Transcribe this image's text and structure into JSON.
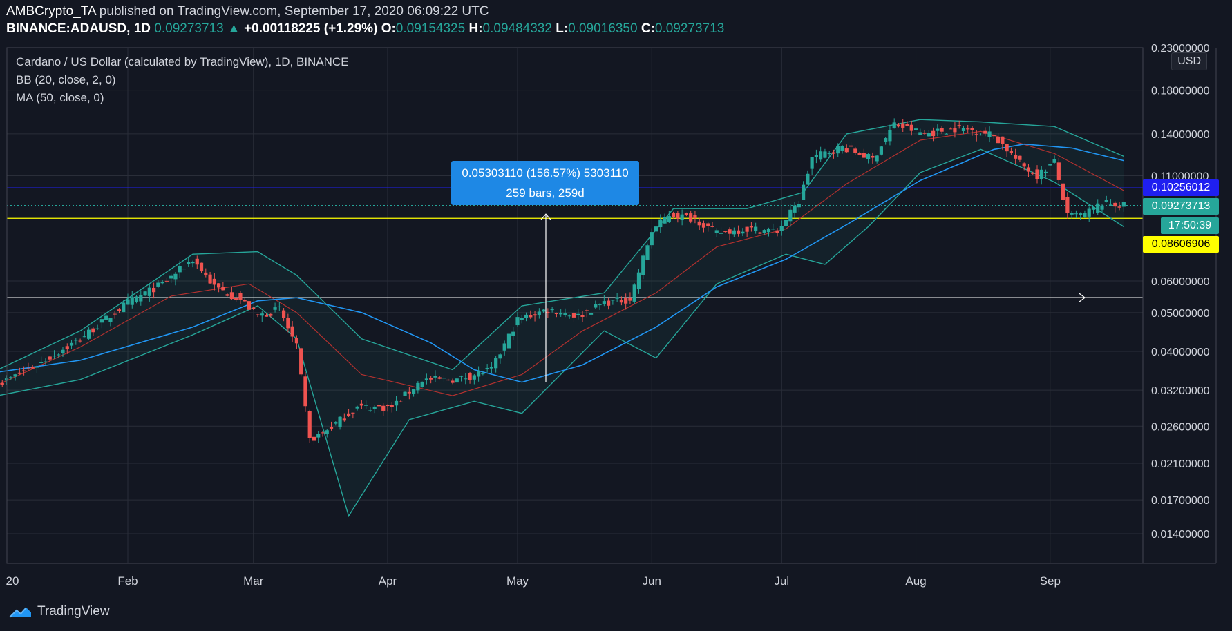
{
  "header": {
    "author": "AMBCrypto_TA",
    "published": " published on TradingView.com, September 17, 2020 06:09:22 UTC",
    "symbol": "BINANCE:ADAUSD, 1D",
    "last": "0.09273713",
    "change": "+0.00118225 (+1.29%)",
    "o_label": "O:",
    "open": "0.09154325",
    "h_label": "H:",
    "high": "0.09484332",
    "l_label": "L:",
    "low": "0.09016350",
    "c_label": "C:",
    "close": "0.09273713"
  },
  "legend": {
    "title": "Cardano / US Dollar (calculated by TradingView), 1D, BINANCE",
    "bb": "BB (20, close, 2, 0)",
    "ma": "MA (50, close, 0)"
  },
  "usd_button": "USD",
  "price_labels": {
    "blue_line": "0.10256012",
    "last_price": "0.09273713",
    "countdown": "17:50:39",
    "yellow_line": "0.08606906"
  },
  "measure": {
    "line1": "0.05303110 (156.57%) 5303110",
    "line2": "259 bars, 259d"
  },
  "footer": {
    "brand": "TradingView"
  },
  "colors": {
    "up": "#26a69a",
    "down": "#ef5350",
    "bb": "#26a69a",
    "ma": "#2196f3",
    "basis": "#b2312f",
    "background": "#131722"
  },
  "chart_data": {
    "type": "candlestick",
    "title": "Cardano / US Dollar (calculated by TradingView), 1D, BINANCE",
    "scale": "log",
    "ylim": [
      0.0118,
      0.23
    ],
    "x_ticks": [
      "20",
      "Feb",
      "Mar",
      "Apr",
      "May",
      "Jun",
      "Jul",
      "Aug",
      "Sep"
    ],
    "y_ticks": [
      "0.23000000",
      "0.18000000",
      "0.14000000",
      "0.11000000",
      "0.06000000",
      "0.05000000",
      "0.04000000",
      "0.03200000",
      "0.02600000",
      "0.02100000",
      "0.01700000",
      "0.01400000"
    ],
    "y_tick_values": [
      0.23,
      0.18,
      0.14,
      0.11,
      0.06,
      0.05,
      0.04,
      0.032,
      0.026,
      0.021,
      0.017,
      0.014
    ],
    "horizontal_lines": [
      {
        "value": 0.10256012,
        "color": "#1f1ff0"
      },
      {
        "value": 0.08606906,
        "color": "#ffff00"
      },
      {
        "value": 0.0545,
        "color": "#ffffff"
      }
    ],
    "close_anchors": [
      [
        "2020-01-01",
        0.033
      ],
      [
        "2020-01-10",
        0.037
      ],
      [
        "2020-01-20",
        0.043
      ],
      [
        "2020-01-31",
        0.053
      ],
      [
        "2020-02-08",
        0.059
      ],
      [
        "2020-02-15",
        0.068
      ],
      [
        "2020-02-20",
        0.058
      ],
      [
        "2020-02-26",
        0.054
      ],
      [
        "2020-03-01",
        0.049
      ],
      [
        "2020-03-06",
        0.051
      ],
      [
        "2020-03-10",
        0.041
      ],
      [
        "2020-03-13",
        0.024
      ],
      [
        "2020-03-16",
        0.025
      ],
      [
        "2020-03-24",
        0.029
      ],
      [
        "2020-04-01",
        0.029
      ],
      [
        "2020-04-08",
        0.034
      ],
      [
        "2020-04-16",
        0.034
      ],
      [
        "2020-04-24",
        0.036
      ],
      [
        "2020-04-30",
        0.048
      ],
      [
        "2020-05-07",
        0.051
      ],
      [
        "2020-05-14",
        0.049
      ],
      [
        "2020-05-20",
        0.053
      ],
      [
        "2020-05-26",
        0.054
      ],
      [
        "2020-05-31",
        0.08
      ],
      [
        "2020-06-04",
        0.088
      ],
      [
        "2020-06-10",
        0.086
      ],
      [
        "2020-06-15",
        0.079
      ],
      [
        "2020-06-22",
        0.081
      ],
      [
        "2020-06-29",
        0.08
      ],
      [
        "2020-07-04",
        0.095
      ],
      [
        "2020-07-07",
        0.122
      ],
      [
        "2020-07-14",
        0.13
      ],
      [
        "2020-07-21",
        0.121
      ],
      [
        "2020-07-26",
        0.148
      ],
      [
        "2020-08-02",
        0.14
      ],
      [
        "2020-08-10",
        0.145
      ],
      [
        "2020-08-18",
        0.139
      ],
      [
        "2020-08-24",
        0.118
      ],
      [
        "2020-08-28",
        0.11
      ],
      [
        "2020-09-01",
        0.119
      ],
      [
        "2020-09-04",
        0.087
      ],
      [
        "2020-09-08",
        0.088
      ],
      [
        "2020-09-12",
        0.094
      ],
      [
        "2020-09-17",
        0.0927
      ]
    ],
    "moving_average_50": [
      [
        "2020-01-01",
        0.0355
      ],
      [
        "2020-01-20",
        0.038
      ],
      [
        "2020-02-15",
        0.046
      ],
      [
        "2020-03-01",
        0.0535
      ],
      [
        "2020-03-10",
        0.0545
      ],
      [
        "2020-03-25",
        0.05
      ],
      [
        "2020-04-10",
        0.042
      ],
      [
        "2020-04-20",
        0.036
      ],
      [
        "2020-05-01",
        0.0335
      ],
      [
        "2020-05-15",
        0.037
      ],
      [
        "2020-06-01",
        0.046
      ],
      [
        "2020-06-15",
        0.058
      ],
      [
        "2020-07-01",
        0.068
      ],
      [
        "2020-07-15",
        0.083
      ],
      [
        "2020-08-01",
        0.107
      ],
      [
        "2020-08-18",
        0.128
      ],
      [
        "2020-08-25",
        0.132
      ],
      [
        "2020-09-05",
        0.129
      ],
      [
        "2020-09-17",
        0.12
      ]
    ],
    "bollinger_basis": [
      [
        "2020-01-01",
        0.033
      ],
      [
        "2020-01-20",
        0.041
      ],
      [
        "2020-02-10",
        0.055
      ],
      [
        "2020-02-28",
        0.059
      ],
      [
        "2020-03-10",
        0.05
      ],
      [
        "2020-03-25",
        0.035
      ],
      [
        "2020-04-15",
        0.031
      ],
      [
        "2020-05-01",
        0.035
      ],
      [
        "2020-05-15",
        0.045
      ],
      [
        "2020-06-01",
        0.056
      ],
      [
        "2020-06-15",
        0.073
      ],
      [
        "2020-07-01",
        0.081
      ],
      [
        "2020-07-15",
        0.105
      ],
      [
        "2020-08-01",
        0.135
      ],
      [
        "2020-08-15",
        0.142
      ],
      [
        "2020-09-01",
        0.125
      ],
      [
        "2020-09-17",
        0.101
      ]
    ],
    "bollinger_upper": [
      [
        "2020-01-01",
        0.036
      ],
      [
        "2020-01-20",
        0.045
      ],
      [
        "2020-02-15",
        0.07
      ],
      [
        "2020-03-01",
        0.071
      ],
      [
        "2020-03-10",
        0.062
      ],
      [
        "2020-03-25",
        0.043
      ],
      [
        "2020-04-15",
        0.036
      ],
      [
        "2020-05-01",
        0.052
      ],
      [
        "2020-05-20",
        0.056
      ],
      [
        "2020-06-05",
        0.091
      ],
      [
        "2020-06-22",
        0.091
      ],
      [
        "2020-07-05",
        0.1
      ],
      [
        "2020-07-15",
        0.14
      ],
      [
        "2020-08-01",
        0.152
      ],
      [
        "2020-08-15",
        0.15
      ],
      [
        "2020-09-01",
        0.146
      ],
      [
        "2020-09-17",
        0.123
      ]
    ],
    "bollinger_lower": [
      [
        "2020-01-01",
        0.031
      ],
      [
        "2020-01-20",
        0.034
      ],
      [
        "2020-02-15",
        0.044
      ],
      [
        "2020-03-01",
        0.052
      ],
      [
        "2020-03-10",
        0.043
      ],
      [
        "2020-03-22",
        0.0155
      ],
      [
        "2020-04-05",
        0.027
      ],
      [
        "2020-04-20",
        0.03
      ],
      [
        "2020-05-01",
        0.028
      ],
      [
        "2020-05-20",
        0.045
      ],
      [
        "2020-06-01",
        0.0385
      ],
      [
        "2020-06-15",
        0.059
      ],
      [
        "2020-07-01",
        0.07
      ],
      [
        "2020-07-10",
        0.066
      ],
      [
        "2020-07-20",
        0.082
      ],
      [
        "2020-08-01",
        0.112
      ],
      [
        "2020-08-15",
        0.128
      ],
      [
        "2020-09-01",
        0.106
      ],
      [
        "2020-09-17",
        0.082
      ]
    ]
  }
}
